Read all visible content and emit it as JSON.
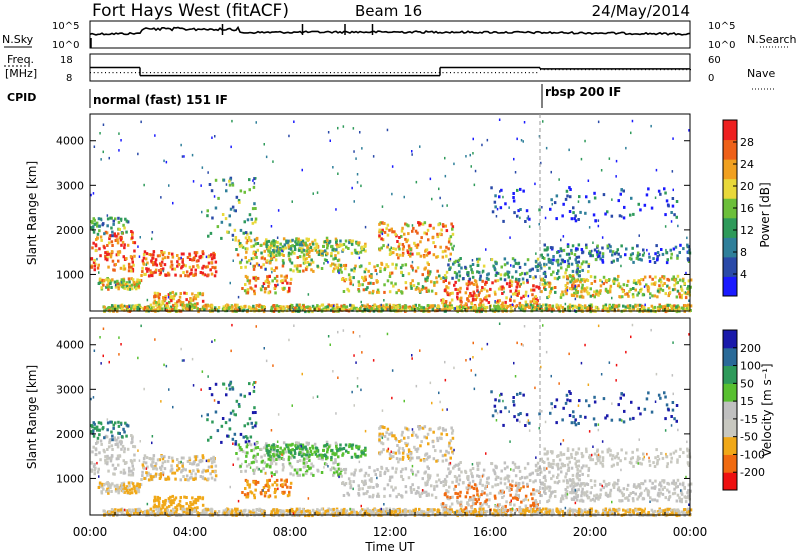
{
  "header": {
    "station": "Fort Hays West (fitACF)",
    "beam": "Beam 16",
    "date": "24/May/2014"
  },
  "left_labels": {
    "nsky": "N.Sky",
    "freq": "Freq.",
    "mhz": "[MHz]",
    "cpid": "CPID"
  },
  "right_labels": {
    "nsearch": "N.Search",
    "nave": "Nave"
  },
  "noise_axis": {
    "left_ticks": [
      "10^5",
      "10^0"
    ],
    "right_ticks": [
      "10^5",
      "10^0"
    ]
  },
  "freq_axis": {
    "left_ticks": [
      "18",
      "8"
    ],
    "right_ticks": [
      "60",
      "0"
    ]
  },
  "cpid_labels": [
    "normal (fast) 151 IF",
    "rbsp 200 IF"
  ],
  "colors": {
    "power": [
      "#1a1aff",
      "#2a4aa8",
      "#2f7f9a",
      "#2e9a5a",
      "#6cbf3a",
      "#e8d83a",
      "#f0a020",
      "#ee6018",
      "#ee2020"
    ],
    "velocity": [
      "#ee1010",
      "#f06a10",
      "#f0a818",
      "#c8c8c0",
      "#c0c0c0",
      "#58c030",
      "#2e9a5a",
      "#2a6a98",
      "#1a1aaa"
    ]
  },
  "chart_data": {
    "type": "heatmap",
    "xlabel": "Time UT",
    "x_ticks": [
      "00:00",
      "04:00",
      "08:00",
      "12:00",
      "16:00",
      "20:00",
      "00:00"
    ],
    "xlim_hours": [
      0,
      24
    ],
    "panels": [
      {
        "id": "power",
        "ylabel": "Slant Range [km]",
        "ylim": [
          180,
          4600
        ],
        "y_ticks": [
          "4000",
          "3000",
          "2000",
          "1000"
        ],
        "colorbar_label": "Power [dB]",
        "colorbar_ticks": [
          "28",
          "24",
          "20",
          "16",
          "12",
          "8",
          "4"
        ],
        "colorbar_range": [
          0,
          32
        ]
      },
      {
        "id": "velocity",
        "ylabel": "Slant Range [km]",
        "ylim": [
          180,
          4600
        ],
        "y_ticks": [
          "4000",
          "3000",
          "2000",
          "1000"
        ],
        "colorbar_label": "Velocity [m s⁻¹]",
        "colorbar_ticks": [
          "200",
          "100",
          "50",
          "15",
          "-15",
          "-50",
          "-100",
          "-200"
        ]
      }
    ],
    "cpid_change_hour": 18.0,
    "frequency_mhz": [
      {
        "from": 0,
        "to": 2.0,
        "value": 13
      },
      {
        "from": 2.0,
        "to": 14.0,
        "value": 10
      },
      {
        "from": 14.0,
        "to": 18.0,
        "value": 13
      },
      {
        "from": 18.0,
        "to": 24.0,
        "value": 12.5
      }
    ]
  }
}
